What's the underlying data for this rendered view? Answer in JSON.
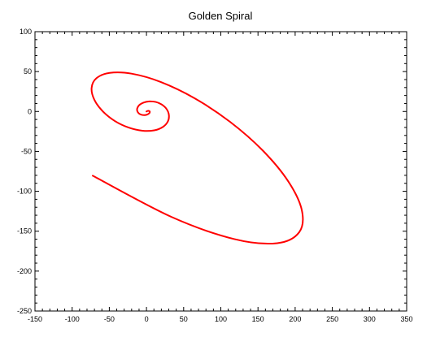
{
  "chart_data": {
    "type": "line",
    "title": "Golden Spiral",
    "xlabel": "",
    "ylabel": "",
    "xlim": [
      -150,
      350
    ],
    "ylim": [
      -250,
      100
    ],
    "grid": false,
    "x_ticks": [
      "-150",
      "-100",
      "-50",
      "0",
      "50",
      "100",
      "150",
      "200",
      "250",
      "300",
      "350"
    ],
    "y_ticks": [
      "100",
      "50",
      "0",
      "-50",
      "-100",
      "-150",
      "-200",
      "-250"
    ],
    "series": [
      {
        "color": "#ff0000",
        "x": [
          0,
          1.2,
          2.8,
          4.1,
          4.5,
          3.6,
          1.3,
          -2.2,
          -6.3,
          -10,
          -12.3,
          -12.4,
          -9.7,
          -4.2,
          3.6,
          12.5,
          20.9,
          27.3,
          30.2,
          28.7,
          22,
          10.4,
          -5.4,
          -23.6,
          -42.3,
          -58.7,
          -70.2,
          -73.8,
          -67.4,
          -49.5,
          -20.1,
          19.1,
          64.7,
          112.2,
          156.3,
          190.6,
          208.9,
          205.5,
          175.9,
          118.2,
          33.6,
          -72.3
        ],
        "y": [
          0,
          0.6,
          0.8,
          0.3,
          -0.8,
          -2.3,
          -3.7,
          -4.5,
          -4.2,
          -2.6,
          0.3,
          4.1,
          8,
          11.1,
          12.6,
          11.9,
          8.5,
          2.7,
          -4.7,
          -12.6,
          -19.4,
          -23.6,
          -24.1,
          -20.3,
          -12.1,
          0.1,
          14.8,
          29.5,
          41.6,
          48.4,
          47.4,
          37,
          16.6,
          -12.8,
          -48.8,
          -87.4,
          -123.4,
          -151.2,
          -165,
          -159.9,
          -132.1,
          -80.5
        ]
      }
    ]
  }
}
